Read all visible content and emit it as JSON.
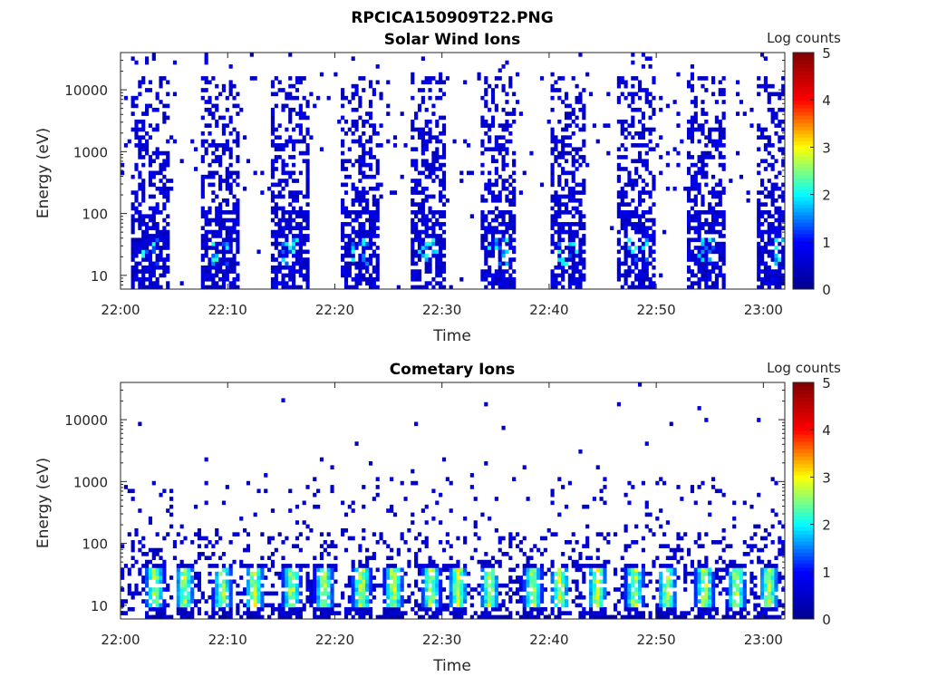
{
  "figure": {
    "title": "RPCICA150909T22.PNG"
  },
  "colorscale": {
    "name": "jet",
    "stops": [
      "#00008f",
      "#0000ff",
      "#00ffff",
      "#ffff00",
      "#ff0000",
      "#800000"
    ]
  },
  "chart_data": [
    {
      "type": "heatmap",
      "title": "Solar Wind Ions",
      "xlabel": "Time",
      "ylabel": "Energy (eV)",
      "x_ticks": [
        "22:00",
        "22:10",
        "22:20",
        "22:30",
        "22:40",
        "22:50",
        "23:00"
      ],
      "x_range": [
        "22:00",
        "23:02"
      ],
      "y_scale": "log",
      "y_ticks": [
        10,
        100,
        1000,
        10000
      ],
      "y_tick_labels": [
        "10",
        "100",
        "1000",
        "10000"
      ],
      "y_range": [
        6,
        40000
      ],
      "colorbar": {
        "label": "Log counts",
        "ticks": [
          "0",
          "1",
          "2",
          "3",
          "4",
          "5"
        ],
        "range": [
          0,
          5
        ]
      },
      "description_series": {
        "sweep_bursts_start_minutes": [
          1,
          7.5,
          14,
          20.5,
          27,
          33.5,
          40,
          46.5,
          53,
          59.5
        ],
        "burst_width_minutes": 3.5,
        "peak_log_counts": 2.2,
        "peak_energy_eV": 25
      }
    },
    {
      "type": "heatmap",
      "title": "Cometary Ions",
      "xlabel": "Time",
      "ylabel": "Energy (eV)",
      "x_ticks": [
        "22:00",
        "22:10",
        "22:20",
        "22:30",
        "22:40",
        "22:50",
        "23:00"
      ],
      "x_range": [
        "22:00",
        "23:02"
      ],
      "y_scale": "log",
      "y_ticks": [
        10,
        100,
        1000,
        10000
      ],
      "y_tick_labels": [
        "10",
        "100",
        "1000",
        "10000"
      ],
      "y_range": [
        6,
        40000
      ],
      "colorbar": {
        "label": "Log counts",
        "ticks": [
          "0",
          "1",
          "2",
          "3",
          "4",
          "5"
        ],
        "range": [
          0,
          5
        ]
      },
      "description_series": {
        "hot_band_energy_eV": [
          10,
          40
        ],
        "peak_log_counts": 3.3,
        "band_centers_minutes": [
          3.2,
          6,
          9.5,
          12.5,
          16,
          19,
          22.5,
          25.5,
          29,
          31.5,
          34.5,
          38.5,
          41,
          44.5,
          48,
          51,
          54.5,
          57.5,
          60.5
        ]
      }
    }
  ]
}
